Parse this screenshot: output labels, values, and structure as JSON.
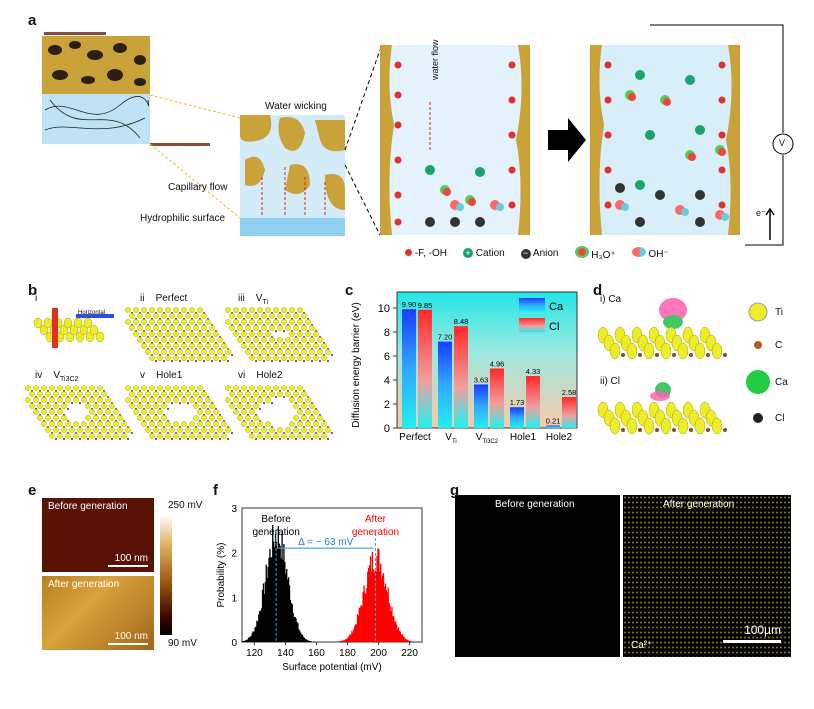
{
  "panels": {
    "a": "a",
    "b": "b",
    "c": "c",
    "d": "d",
    "e": "e",
    "f": "f",
    "g": "g"
  },
  "panel_a": {
    "water_wicking": "Water wicking",
    "capillary_flow": "Capillary flow",
    "hydrophilic_surface": "Hydrophilic surface",
    "water_flow": "water flow",
    "voltmeter": "V",
    "electron": "e⁻",
    "legend": [
      {
        "icon": "red-dot-icon",
        "label": "-F, -OH"
      },
      {
        "icon": "cation-icon",
        "label": "Cation"
      },
      {
        "icon": "anion-icon",
        "label": "Anion"
      },
      {
        "icon": "hydronium-icon",
        "label": "H₃O⁺"
      },
      {
        "icon": "hydroxide-icon",
        "label": "OH⁻"
      }
    ]
  },
  "panel_b": {
    "items": [
      {
        "num": "i",
        "title": "",
        "h": "Horizontal",
        "v": "Vertical"
      },
      {
        "num": "ii",
        "title": "Perfect"
      },
      {
        "num": "iii",
        "title": "V",
        "sub": "Ti"
      },
      {
        "num": "iv",
        "title": "V",
        "sub": "Ti3C2"
      },
      {
        "num": "v",
        "title": "Hole1"
      },
      {
        "num": "vi",
        "title": "Hole2"
      }
    ]
  },
  "panel_d": {
    "ca_label": "i) Ca",
    "cl_label": "ii) Cl",
    "legend": [
      "Ti",
      "C",
      "Ca",
      "Cl"
    ]
  },
  "panel_e": {
    "before": "Before generation",
    "after": "After generation",
    "scale": "100 nm",
    "cbar_max": "250 mV",
    "cbar_min": "90 mV"
  },
  "panel_g": {
    "before": "Before generation",
    "after": "After generation",
    "ion": "Ca²⁺",
    "scale": "100µm"
  },
  "chart_data": [
    {
      "type": "bar",
      "title": "",
      "ylabel": "Diffusion energy barrier (eV)",
      "xlabel": "",
      "ylim": [
        0,
        10.5
      ],
      "yticks": [
        "0",
        "2",
        "4",
        "6",
        "8",
        "10"
      ],
      "categories": [
        "Perfect",
        "V_Ti",
        "V_Ti3C2",
        "Hole1",
        "Hole2"
      ],
      "cat_labels": [
        {
          "main": "Perfect",
          "sub": ""
        },
        {
          "main": "V",
          "sub": "Ti"
        },
        {
          "main": "V",
          "sub": "Ti3C2"
        },
        {
          "main": "Hole1",
          "sub": ""
        },
        {
          "main": "Hole2",
          "sub": ""
        }
      ],
      "series": [
        {
          "name": "Ca",
          "values": [
            9.9,
            7.2,
            3.63,
            1.73,
            0.21
          ],
          "labels": [
            "9.90",
            "7.20",
            "3.63",
            "1.73",
            "0.21"
          ],
          "color": "#1a3cff"
        },
        {
          "name": "Cl",
          "values": [
            9.85,
            8.48,
            4.96,
            4.33,
            2.58
          ],
          "labels": [
            "9.85",
            "8.48",
            "4.96",
            "4.33",
            "2.58"
          ],
          "color": "#ff3030"
        }
      ],
      "legend": "top-right"
    },
    {
      "type": "histogram",
      "xlabel": "Surface potential (mV)",
      "ylabel": "Probability (%)",
      "xlim": [
        112,
        228
      ],
      "ylim": [
        0,
        3
      ],
      "xticks": [
        "120",
        "140",
        "160",
        "180",
        "200",
        "220"
      ],
      "yticks": [
        "0",
        "1",
        "2",
        "3"
      ],
      "series": [
        {
          "name": "Before generation",
          "mean": 134,
          "sd": 7,
          "peak": 2.45,
          "color": "#000000"
        },
        {
          "name": "After generation",
          "mean": 198,
          "sd": 7.5,
          "peak": 1.95,
          "color": "#ff0000"
        }
      ],
      "annotation": "Δ = ~ 63 mV",
      "labels": {
        "before": "Before",
        "before2": "generation",
        "after": "After",
        "after2": "generation"
      }
    }
  ]
}
